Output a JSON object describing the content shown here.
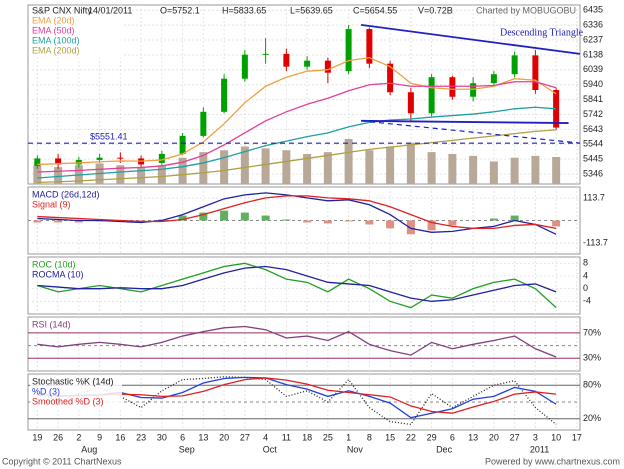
{
  "header": {
    "title": "S&P CNX Nifty",
    "date": "14/01/2011",
    "open": "O=5752.1",
    "high": "H=5833.65",
    "low": "L=5639.65",
    "close": "C=5654.55",
    "volume": "V=0.72B",
    "credit": "Charted by MOBUGOBU"
  },
  "footer": {
    "left": "Copyright © 2011 ChartNexus",
    "right": "Powered by www.chartnexus.com"
  },
  "chart_data": [
    {
      "type": "candlestick",
      "x": [
        0,
        1,
        2,
        3,
        4,
        5,
        6,
        7,
        8,
        9,
        10,
        11,
        12,
        13,
        14,
        15,
        16,
        17,
        18,
        19,
        20,
        21,
        22,
        23,
        24,
        25
      ],
      "xlim": [
        -0.45,
        26.15
      ],
      "open": [
        5400,
        5450,
        5410,
        5440,
        5455,
        5450,
        5420,
        5480,
        5600,
        5760,
        5980,
        6140,
        6145,
        6060,
        6100,
        6030,
        6310,
        6080,
        5890,
        5750,
        5990,
        5860,
        5950,
        6010,
        6135,
        5905
      ],
      "high": [
        5470,
        5480,
        5460,
        5480,
        5490,
        5470,
        5500,
        5620,
        5790,
        6010,
        6170,
        6250,
        6180,
        6130,
        6120,
        6338,
        6320,
        6100,
        5920,
        6010,
        6000,
        5990,
        6030,
        6160,
        6170,
        5920
      ],
      "low": [
        5380,
        5380,
        5390,
        5420,
        5420,
        5390,
        5400,
        5470,
        5590,
        5750,
        5960,
        6080,
        6030,
        6040,
        5950,
        6010,
        6050,
        5870,
        5690,
        5730,
        5840,
        5830,
        5940,
        5990,
        5880,
        5640
      ],
      "close": [
        5450,
        5410,
        5440,
        5455,
        5450,
        5410,
        5480,
        5600,
        5760,
        5980,
        6140,
        6145,
        6060,
        6100,
        6020,
        6310,
        6080,
        5890,
        5750,
        5990,
        5860,
        5950,
        6010,
        6135,
        5905,
        5655
      ],
      "color_up": "#00a000",
      "color_down": "#e00000",
      "series": [
        {
          "name": "EMA (20d)",
          "color": "#f0a040",
          "values": [
            5410,
            5415,
            5420,
            5428,
            5433,
            5432,
            5440,
            5480,
            5560,
            5680,
            5820,
            5930,
            5990,
            6030,
            6040,
            6100,
            6120,
            6060,
            5950,
            5920,
            5910,
            5910,
            5930,
            5980,
            5970,
            5880
          ]
        },
        {
          "name": "EMA (50d)",
          "color": "#e0409a",
          "values": [
            5360,
            5365,
            5370,
            5378,
            5385,
            5390,
            5400,
            5425,
            5470,
            5540,
            5620,
            5700,
            5760,
            5810,
            5850,
            5900,
            5940,
            5950,
            5930,
            5930,
            5930,
            5930,
            5935,
            5960,
            5960,
            5920
          ]
        },
        {
          "name": "EMA (100d)",
          "color": "#20a0a0",
          "values": [
            5320,
            5330,
            5340,
            5350,
            5360,
            5368,
            5378,
            5395,
            5420,
            5455,
            5495,
            5535,
            5565,
            5595,
            5620,
            5660,
            5690,
            5705,
            5712,
            5725,
            5735,
            5745,
            5760,
            5780,
            5790,
            5780
          ]
        },
        {
          "name": "EMA (200d)",
          "color": "#b0a040",
          "values": [
            5290,
            5295,
            5300,
            5308,
            5315,
            5322,
            5330,
            5342,
            5355,
            5370,
            5390,
            5410,
            5430,
            5450,
            5470,
            5490,
            5510,
            5525,
            5540,
            5555,
            5570,
            5585,
            5600,
            5615,
            5630,
            5640
          ]
        }
      ],
      "volume": {
        "color": "#b8a898",
        "vlim": [
          0,
          2.4
        ],
        "values": [
          0.5,
          0.45,
          0.5,
          0.55,
          0.5,
          0.45,
          0.5,
          0.7,
          0.85,
          0.9,
          1.0,
          0.95,
          0.9,
          0.8,
          0.85,
          1.2,
          0.9,
          1.0,
          1.1,
          0.85,
          0.8,
          0.75,
          0.6,
          0.7,
          0.75,
          0.72
        ]
      },
      "ylim": [
        5280,
        6470
      ],
      "yticks": [
        5346,
        5445,
        5544,
        5643,
        5742,
        5841,
        5940,
        6039,
        6138,
        6237,
        6336,
        6435
      ],
      "grid": true,
      "trendlines": [
        {
          "x": [
            15.6,
            26.15
          ],
          "y": [
            6338,
            6145
          ],
          "color": "#2020c0",
          "dashed": false
        },
        {
          "x": [
            15.6,
            25.6
          ],
          "y": [
            5700,
            5685
          ],
          "color": "#2020c0",
          "dashed": false
        },
        {
          "x": [
            -0.45,
            26.15
          ],
          "y": [
            5551.41,
            5551.41
          ],
          "color": "#2020c0",
          "dashed": true,
          "label": "$5551.41"
        },
        {
          "x": [
            15.6,
            26.15
          ],
          "y": [
            5700,
            5552
          ],
          "color": "#2020c0",
          "dashed": true
        }
      ],
      "annotations": [
        "Descending Triangle"
      ]
    },
    {
      "type": "line",
      "series": [
        {
          "name": "MACD (26d,12d)",
          "color": "#2020a0",
          "values": [
            10,
            5,
            0,
            0,
            -5,
            -10,
            0,
            30,
            70,
            110,
            130,
            140,
            130,
            115,
            100,
            105,
            80,
            30,
            -40,
            -60,
            -55,
            -40,
            -30,
            0,
            -20,
            -70
          ]
        },
        {
          "name": "Signal (9)",
          "color": "#e02020",
          "values": [
            20,
            15,
            10,
            5,
            0,
            -5,
            -5,
            5,
            30,
            60,
            90,
            115,
            125,
            125,
            115,
            110,
            100,
            70,
            30,
            -10,
            -30,
            -40,
            -40,
            -25,
            -20,
            -40
          ]
        }
      ],
      "histogram": {
        "color_up": "#60b060",
        "color_down": "#e09080",
        "values": [
          -10,
          -10,
          -10,
          -5,
          -5,
          -5,
          5,
          25,
          40,
          50,
          40,
          25,
          5,
          -10,
          -15,
          -5,
          -20,
          -40,
          -70,
          -50,
          -25,
          0,
          10,
          25,
          0,
          -30
        ]
      },
      "ylim": [
        -170,
        170
      ],
      "yticks": [
        113.7,
        -113.7
      ],
      "refline": 0
    },
    {
      "type": "line",
      "series": [
        {
          "name": "ROC (10d)",
          "color": "#20a020",
          "values": [
            1,
            -1,
            0,
            1,
            0,
            -1,
            1,
            3,
            5,
            7,
            8,
            6,
            3,
            2,
            -1,
            3,
            0,
            -4,
            -6,
            -2,
            -3,
            0,
            2,
            3,
            0,
            -6
          ]
        },
        {
          "name": "ROCMA (10)",
          "color": "#2020a0",
          "values": [
            1,
            0.5,
            0,
            0,
            0.3,
            0,
            0,
            1,
            3,
            5,
            6.5,
            7,
            6,
            4,
            2,
            1.5,
            1,
            -1,
            -3,
            -4,
            -3.5,
            -2,
            -0.5,
            1,
            1.5,
            -1
          ]
        }
      ],
      "ylim": [
        -8,
        10
      ],
      "yticks": [
        8,
        4,
        0,
        -4
      ]
    },
    {
      "type": "line",
      "series": [
        {
          "name": "RSI (14d)",
          "color": "#804080",
          "values": [
            52,
            48,
            52,
            55,
            52,
            48,
            55,
            65,
            72,
            78,
            80,
            75,
            62,
            65,
            58,
            72,
            52,
            42,
            35,
            55,
            45,
            52,
            58,
            65,
            45,
            32
          ]
        }
      ],
      "ylim": [
        10,
        95
      ],
      "yticks": [
        {
          "value": 70,
          "label": "70%"
        },
        {
          "value": 30,
          "label": "30%"
        }
      ],
      "refline": 50,
      "tick_line_color": "#903060"
    },
    {
      "type": "line",
      "series": [
        {
          "name": "Stochastic %K (14d)",
          "color": "#222222",
          "dotted": true,
          "values": [
            70,
            50,
            65,
            75,
            60,
            40,
            70,
            90,
            92,
            95,
            94,
            90,
            60,
            70,
            50,
            90,
            40,
            15,
            10,
            65,
            40,
            60,
            80,
            88,
            40,
            10
          ]
        },
        {
          "name": "%D (3)",
          "color": "#2040e0",
          "values": [
            65,
            60,
            62,
            63,
            67,
            58,
            57,
            67,
            84,
            92,
            94,
            93,
            81,
            73,
            60,
            70,
            60,
            48,
            22,
            30,
            38,
            55,
            60,
            76,
            69,
            46
          ]
        },
        {
          "name": "Smoothed %D (3)",
          "color": "#e02020",
          "values": [
            62,
            62,
            61,
            62,
            64,
            63,
            60,
            61,
            69,
            81,
            90,
            93,
            89,
            82,
            71,
            67,
            63,
            59,
            43,
            33,
            30,
            41,
            51,
            64,
            68,
            64
          ]
        }
      ],
      "ylim": [
        0,
        100
      ],
      "yticks": [
        {
          "value": 80,
          "label": "80%"
        },
        {
          "value": 20,
          "label": "20%"
        }
      ],
      "refline": 50,
      "tick_line_color": "#666666",
      "xticks": [
        {
          "value": 0,
          "label": "19"
        },
        {
          "value": 1,
          "label": "26"
        },
        {
          "value": 2,
          "label": "2"
        },
        {
          "value": 3,
          "label": "9"
        },
        {
          "value": 4,
          "label": "16"
        },
        {
          "value": 5,
          "label": "23"
        },
        {
          "value": 6,
          "label": "30"
        },
        {
          "value": 7,
          "label": "6"
        },
        {
          "value": 8,
          "label": "13"
        },
        {
          "value": 9,
          "label": "20"
        },
        {
          "value": 10,
          "label": "27"
        },
        {
          "value": 11,
          "label": "4"
        },
        {
          "value": 12,
          "label": "11"
        },
        {
          "value": 13,
          "label": "18"
        },
        {
          "value": 14,
          "label": "25"
        },
        {
          "value": 15,
          "label": "1"
        },
        {
          "value": 16,
          "label": "8"
        },
        {
          "value": 17,
          "label": "15"
        },
        {
          "value": 18,
          "label": "22"
        },
        {
          "value": 19,
          "label": "29"
        },
        {
          "value": 20,
          "label": "6"
        },
        {
          "value": 21,
          "label": "13"
        },
        {
          "value": 22,
          "label": "20"
        },
        {
          "value": 23,
          "label": "27"
        },
        {
          "value": 24,
          "label": "3"
        },
        {
          "value": 25,
          "label": "10"
        },
        {
          "value": 26,
          "label": "17"
        }
      ],
      "xmonths": [
        {
          "value": 2.5,
          "label": "Aug"
        },
        {
          "value": 7.2,
          "label": "Sep"
        },
        {
          "value": 11.2,
          "label": "Oct"
        },
        {
          "value": 15.3,
          "label": "Nov"
        },
        {
          "value": 19.6,
          "label": "Dec"
        },
        {
          "value": 24.2,
          "label": "2011"
        }
      ]
    }
  ]
}
